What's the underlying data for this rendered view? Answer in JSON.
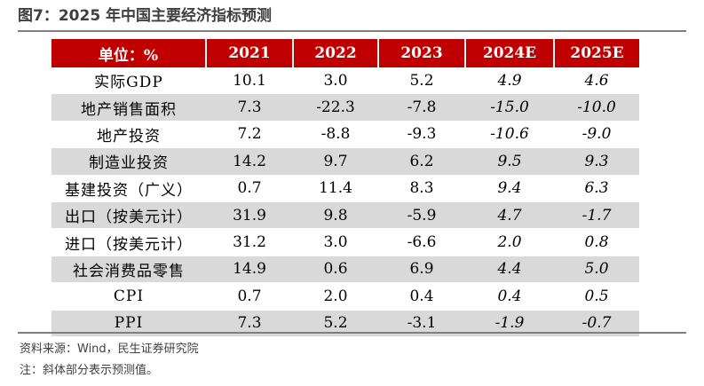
{
  "title": "图7：2025 年中国主要经济指标预测",
  "table": {
    "header": [
      "单位：%",
      "2021",
      "2022",
      "2023",
      "2024E",
      "2025E"
    ],
    "rows": [
      {
        "label": "实际GDP",
        "values": [
          "10.1",
          "3.0",
          "5.2",
          "4.9",
          "4.6"
        ]
      },
      {
        "label": "地产销售面积",
        "values": [
          "7.3",
          "-22.3",
          "-7.8",
          "-15.0",
          "-10.0"
        ]
      },
      {
        "label": "地产投资",
        "values": [
          "7.2",
          "-8.8",
          "-9.3",
          "-10.6",
          "-9.0"
        ]
      },
      {
        "label": "制造业投资",
        "values": [
          "14.2",
          "9.7",
          "6.2",
          "9.5",
          "9.3"
        ]
      },
      {
        "label": "基建投资（广义）",
        "values": [
          "0.7",
          "11.4",
          "8.3",
          "9.4",
          "6.3"
        ]
      },
      {
        "label": "出口（按美元计）",
        "values": [
          "31.9",
          "9.8",
          "-5.9",
          "4.7",
          "-1.7"
        ]
      },
      {
        "label": "进口（按美元计）",
        "values": [
          "31.2",
          "3.0",
          "-6.6",
          "2.0",
          "0.8"
        ]
      },
      {
        "label": "社会消费品零售",
        "values": [
          "14.9",
          "0.6",
          "6.9",
          "4.4",
          "5.0"
        ]
      },
      {
        "label": "CPI",
        "values": [
          "0.7",
          "2.0",
          "0.4",
          "0.4",
          "0.5"
        ]
      },
      {
        "label": "PPI",
        "values": [
          "7.3",
          "5.2",
          "-3.1",
          "-1.9",
          "-0.7"
        ]
      }
    ]
  },
  "source": "资料来源：Wind，民生证券研究院",
  "note": "注：斜体部分表示预测值。",
  "colors": {
    "header_bg": "#c00000",
    "stripe_bg": "#d9d9d9",
    "rule": "#7f7f7f"
  }
}
